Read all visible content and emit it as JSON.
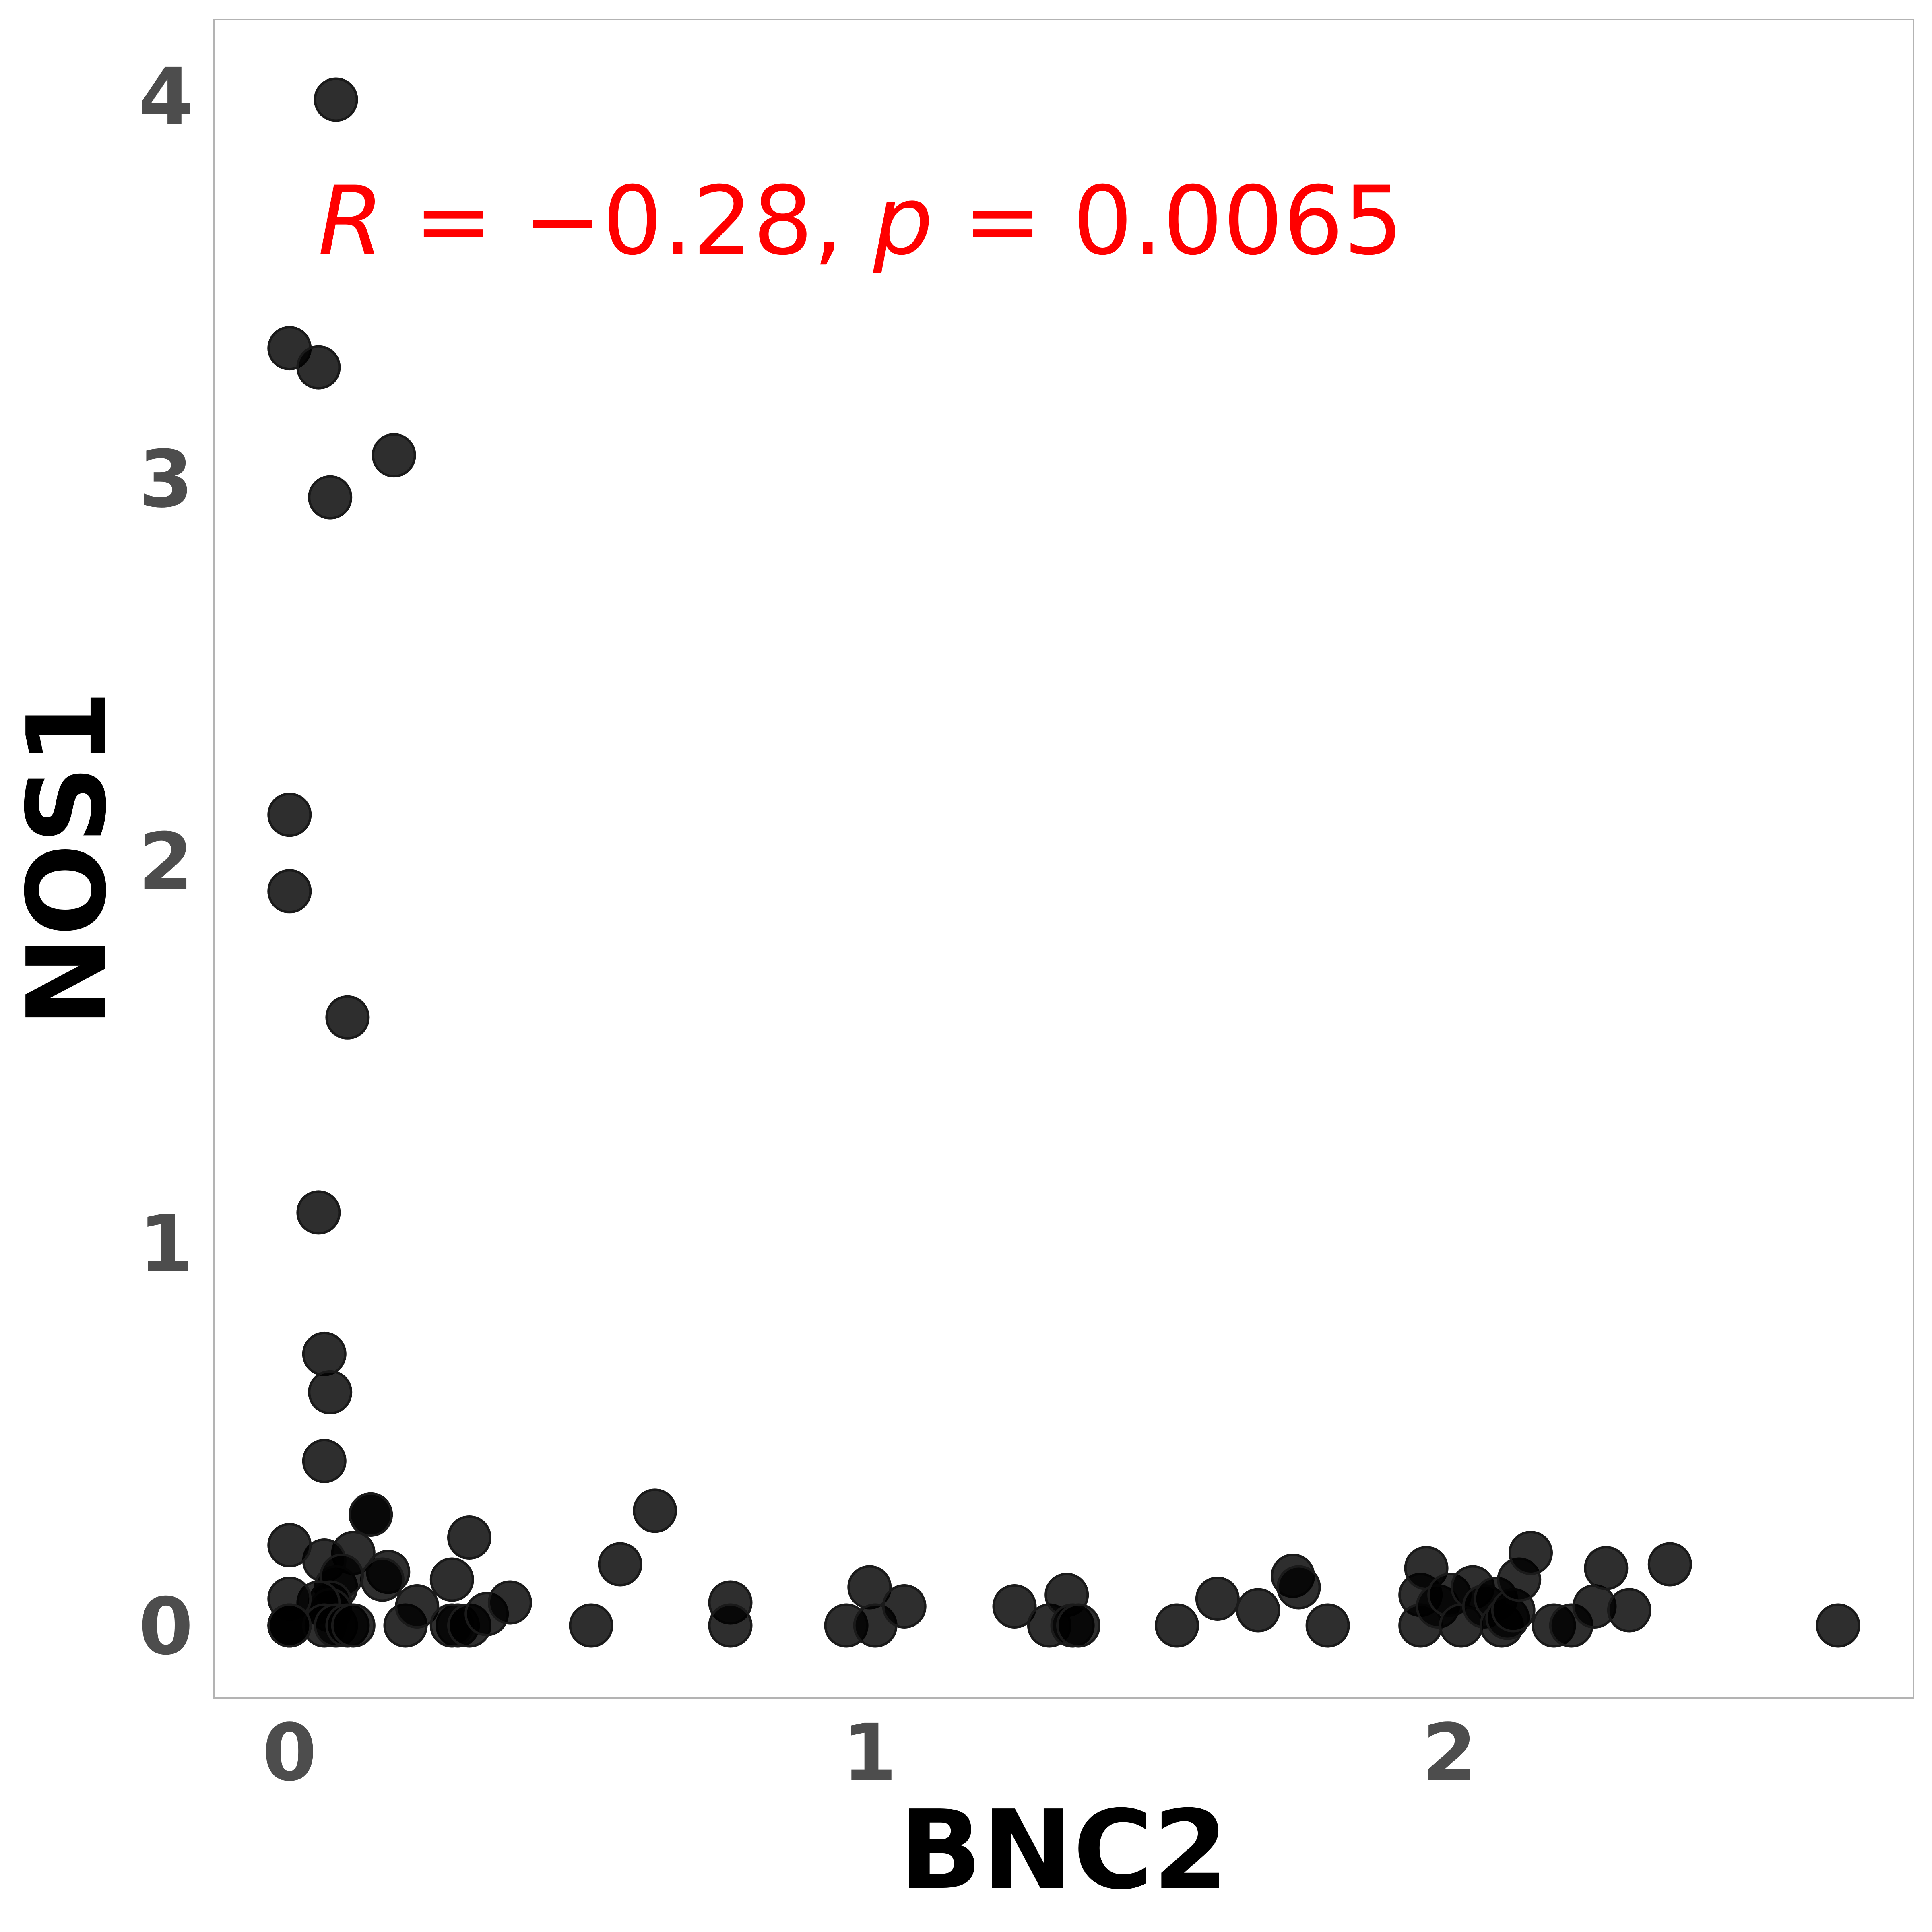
{
  "chart_data": {
    "type": "scatter",
    "xlabel": "BNC2",
    "ylabel": "NOS1",
    "xlim": [
      -0.13,
      2.8
    ],
    "ylim": [
      -0.19,
      4.2
    ],
    "x_ticks": [
      "0",
      "1",
      "2"
    ],
    "y_ticks": [
      "0",
      "1",
      "2",
      "3",
      "4"
    ],
    "grid": false,
    "annotation": {
      "r_symbol": "R",
      "r_text": " = −0.28, ",
      "p_symbol": "p",
      "p_text": " = 0.0065",
      "color": "#ff0000"
    },
    "point_color": "#000000",
    "point_edge_color": "#1a1a1a",
    "x": [
      0.08,
      0.0,
      0.05,
      0.07,
      0.18,
      0.0,
      0.0,
      0.1,
      0.05,
      0.06,
      0.07,
      0.06,
      0.14,
      0.14,
      0.11,
      0.17,
      0.16,
      0.06,
      0.08,
      0.09,
      0.07,
      0.07,
      0.05,
      0.0,
      0.0,
      0.0,
      0.0,
      0.06,
      0.08,
      0.1,
      0.11,
      0.2,
      0.22,
      0.29,
      0.28,
      0.31,
      0.28,
      0.31,
      0.34,
      0.38,
      0.52,
      0.57,
      0.63,
      0.76,
      0.76,
      0.96,
      1.0,
      1.01,
      1.06,
      1.25,
      1.31,
      1.34,
      1.35,
      1.36,
      1.53,
      1.6,
      1.67,
      1.73,
      1.74,
      1.79,
      1.95,
      1.96,
      1.95,
      1.98,
      2.0,
      2.02,
      2.04,
      2.06,
      2.08,
      2.09,
      2.1,
      2.11,
      2.12,
      2.14,
      2.18,
      2.21,
      2.25,
      2.27,
      2.31,
      2.38,
      2.67,
      0.0
    ],
    "y": [
      3.99,
      3.34,
      3.29,
      2.95,
      3.06,
      2.12,
      1.92,
      1.59,
      1.08,
      0.71,
      0.61,
      0.43,
      0.29,
      0.29,
      0.19,
      0.14,
      0.12,
      0.17,
      0.1,
      0.13,
      0.06,
      0.04,
      0.06,
      0.21,
      0.07,
      0.0,
      0.0,
      0.0,
      0.0,
      0.0,
      0.0,
      0.0,
      0.05,
      0.0,
      0.0,
      0.0,
      0.12,
      0.23,
      0.03,
      0.06,
      0.0,
      0.16,
      0.3,
      0.06,
      0.0,
      0.0,
      0.1,
      0.0,
      0.05,
      0.05,
      0.0,
      0.08,
      0.0,
      0.0,
      0.0,
      0.07,
      0.04,
      0.13,
      0.1,
      0.0,
      0.08,
      0.15,
      0.0,
      0.05,
      0.08,
      0.0,
      0.1,
      0.05,
      0.07,
      0.0,
      0.02,
      0.04,
      0.12,
      0.19,
      0.0,
      0.0,
      0.05,
      0.15,
      0.04,
      0.16,
      0.0,
      0.0
    ]
  }
}
